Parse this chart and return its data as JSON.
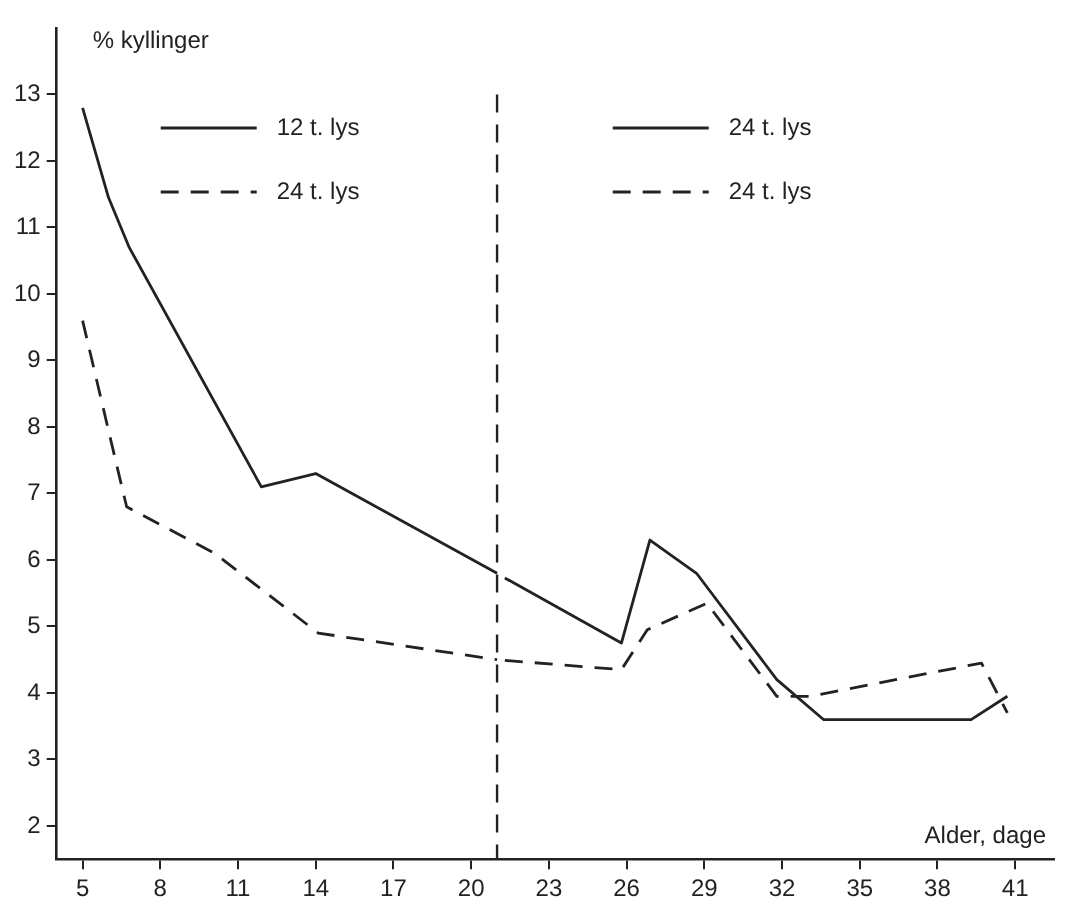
{
  "chart_data": {
    "type": "line",
    "ylabel": "% kyllinger",
    "xlabel": "Alder, dage",
    "xlim": [
      4,
      42.5
    ],
    "xticks": [
      5,
      8,
      11,
      14,
      17,
      20,
      23,
      26,
      29,
      32,
      35,
      38,
      41
    ],
    "ylim": [
      1.5,
      14
    ],
    "yticks": [
      2,
      3,
      4,
      5,
      6,
      7,
      8,
      9,
      10,
      11,
      12,
      13
    ],
    "grid": false,
    "legend": "top",
    "marker": "none",
    "ref_lines": [
      {
        "axis": "x",
        "value": 21,
        "color": "#222222",
        "line_style": "dashed"
      }
    ],
    "series": [
      {
        "name": "12 t. lys",
        "color": "#222222",
        "line_style": "solid",
        "x": [
          5,
          6,
          6.8,
          11.9,
          14,
          21
        ],
        "values": [
          12.8,
          11.45,
          10.7,
          7.1,
          7.3,
          5.8
        ]
      },
      {
        "name": "24 t. lys",
        "color": "#222222",
        "line_style": "dashed",
        "x": [
          5,
          6.15,
          6.7,
          10.1,
          14.1,
          21
        ],
        "values": [
          9.6,
          7.7,
          6.8,
          6.1,
          4.9,
          4.5
        ]
      },
      {
        "name": "24 t. lys",
        "color": "#222222",
        "line_style": "solid",
        "x": [
          21.3,
          25.8,
          26.9,
          28.7,
          31.8,
          33.6,
          39.3,
          40.7
        ],
        "values": [
          5.73,
          4.75,
          6.3,
          5.8,
          4.2,
          3.6,
          3.6,
          3.95
        ]
      },
      {
        "name": "24 t. lys",
        "color": "#222222",
        "line_style": "dashed",
        "x": [
          21.3,
          25.8,
          26.8,
          29.1,
          31.8,
          33.1,
          39.7,
          40.7
        ],
        "values": [
          4.49,
          4.35,
          4.95,
          5.35,
          3.95,
          3.95,
          4.45,
          3.7
        ]
      }
    ]
  }
}
